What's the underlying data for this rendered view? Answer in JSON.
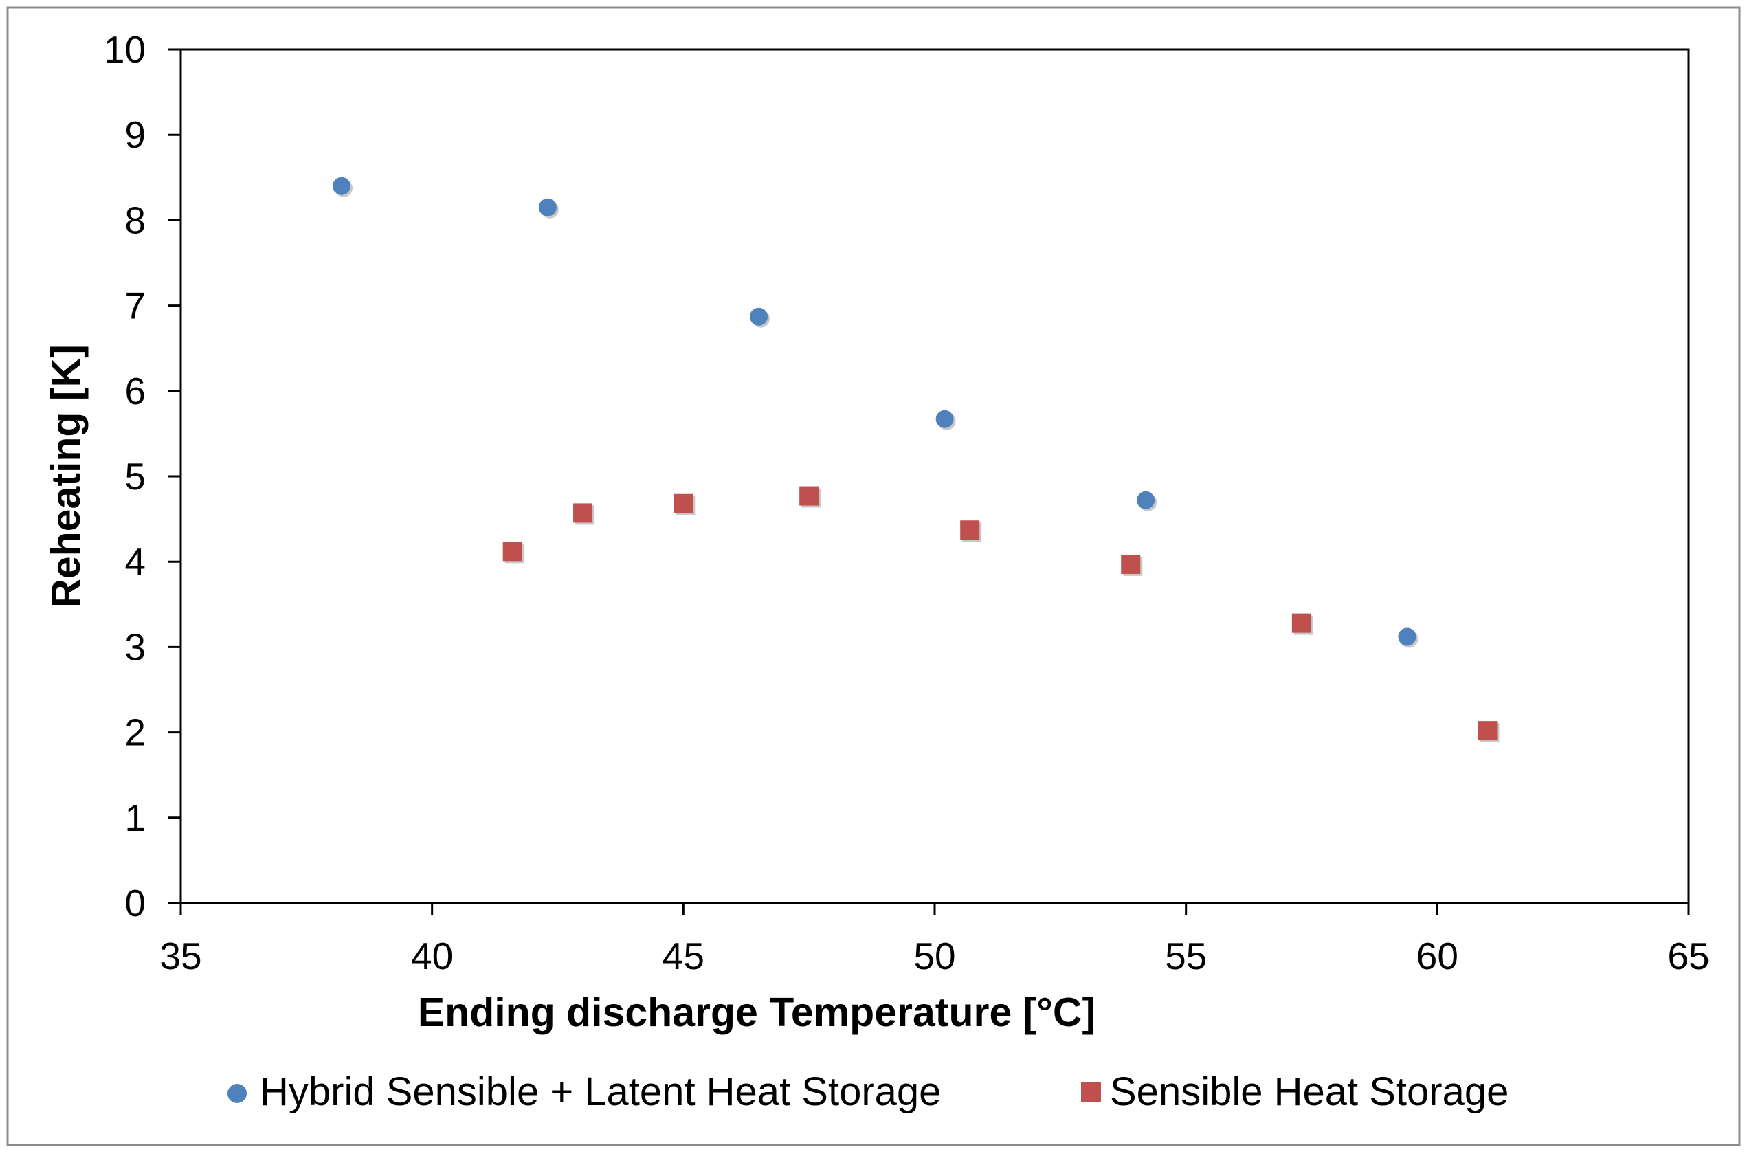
{
  "chart_data": {
    "type": "scatter",
    "title": "",
    "xlabel": "Ending discharge Temperature [°C]",
    "ylabel": "Reheating [K]",
    "xlim": [
      35,
      65
    ],
    "ylim": [
      0,
      10
    ],
    "xticks": [
      35,
      40,
      45,
      50,
      55,
      60,
      65
    ],
    "yticks": [
      0,
      1,
      2,
      3,
      4,
      5,
      6,
      7,
      8,
      9,
      10
    ],
    "grid": false,
    "legend_position": "bottom",
    "series": [
      {
        "name": "Hybrid Sensible + Latent Heat Storage",
        "marker": "circle",
        "color": "#4f81bd",
        "x": [
          38.2,
          42.3,
          46.5,
          50.2,
          54.2,
          59.4
        ],
        "y": [
          8.4,
          8.15,
          6.87,
          5.67,
          4.72,
          3.12
        ]
      },
      {
        "name": "Sensible Heat Storage",
        "marker": "square",
        "color": "#c0504d",
        "x": [
          41.6,
          43.0,
          45.0,
          47.5,
          50.7,
          53.9,
          57.3,
          61.0
        ],
        "y": [
          4.12,
          4.57,
          4.68,
          4.77,
          4.37,
          3.97,
          3.28,
          2.02
        ]
      }
    ]
  }
}
